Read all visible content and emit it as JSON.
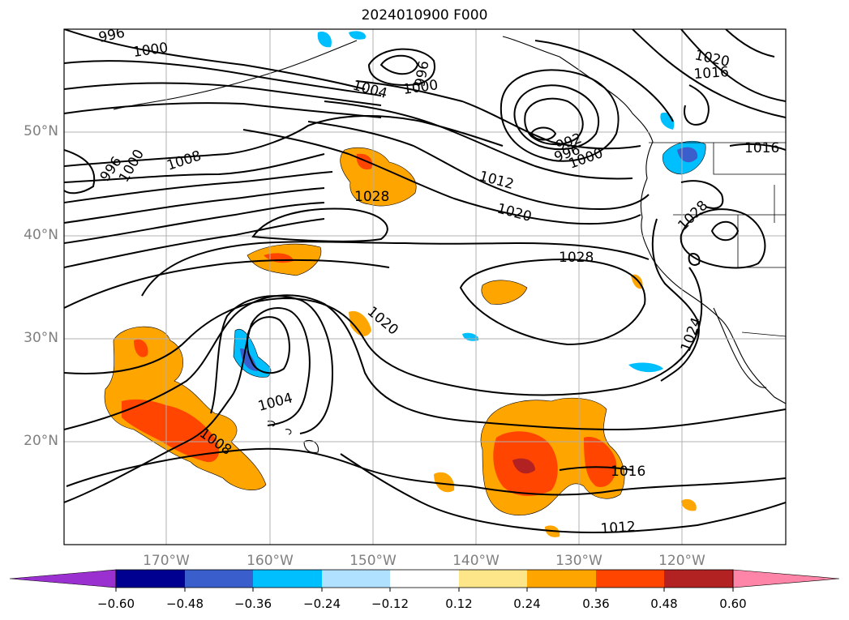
{
  "title": "2024010900 F000",
  "axes": {
    "lat_labels": [
      "50°N",
      "40°N",
      "30°N",
      "20°N"
    ],
    "lon_labels": [
      "170°W",
      "160°W",
      "150°W",
      "140°W",
      "130°W",
      "120°W"
    ]
  },
  "contour_labels": [
    "996",
    "1000",
    "1004",
    "1000",
    "996",
    "992",
    "996",
    "1000",
    "1020",
    "1016",
    "1016",
    "996",
    "1000",
    "1008",
    "1028",
    "1012",
    "1020",
    "1028",
    "1028",
    "1020",
    "1004",
    "1008",
    "1024",
    "1016",
    "1012"
  ],
  "colorbar": {
    "ticks": [
      "−0.60",
      "−0.48",
      "−0.36",
      "−0.24",
      "−0.12",
      "0.12",
      "0.24",
      "0.36",
      "0.48",
      "0.60"
    ],
    "colors": [
      "#9b30d0",
      "#000090",
      "#3a5fcd",
      "#00bfff",
      "#b0e2ff",
      "#ffffff",
      "#fde68a",
      "#ffa500",
      "#ff4500",
      "#b22222",
      "#ff85a8"
    ]
  }
}
